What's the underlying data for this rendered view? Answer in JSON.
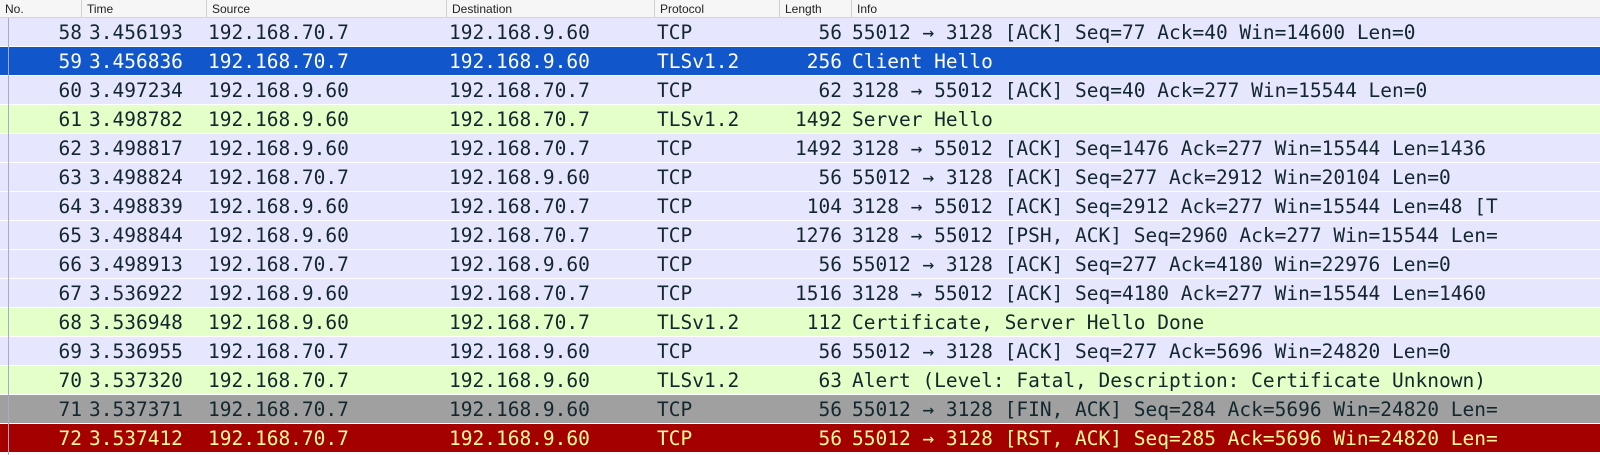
{
  "columns": [
    "No.",
    "Time",
    "Source",
    "Destination",
    "Protocol",
    "Length",
    "Info"
  ],
  "colors": {
    "tcp": "#e7e6ff",
    "tls": "#e4ffc7",
    "selected": "#1256cc",
    "fin": "#a0a0a0",
    "rst": "#a40000",
    "rst_text": "#fffc9c"
  },
  "rows": [
    {
      "no": "58",
      "time": "3.456193",
      "src": "192.168.70.7",
      "dst": "192.168.9.60",
      "proto": "TCP",
      "len": "56",
      "info": "55012 → 3128 [ACK] Seq=77 Ack=40 Win=14600 Len=0",
      "style": "tcp"
    },
    {
      "no": "59",
      "time": "3.456836",
      "src": "192.168.70.7",
      "dst": "192.168.9.60",
      "proto": "TLSv1.2",
      "len": "256",
      "info": "Client Hello",
      "style": "selected"
    },
    {
      "no": "60",
      "time": "3.497234",
      "src": "192.168.9.60",
      "dst": "192.168.70.7",
      "proto": "TCP",
      "len": "62",
      "info": "3128 → 55012 [ACK] Seq=40 Ack=277 Win=15544 Len=0",
      "style": "tcp"
    },
    {
      "no": "61",
      "time": "3.498782",
      "src": "192.168.9.60",
      "dst": "192.168.70.7",
      "proto": "TLSv1.2",
      "len": "1492",
      "info": "Server Hello",
      "style": "tls"
    },
    {
      "no": "62",
      "time": "3.498817",
      "src": "192.168.9.60",
      "dst": "192.168.70.7",
      "proto": "TCP",
      "len": "1492",
      "info": "3128 → 55012 [ACK] Seq=1476 Ack=277 Win=15544 Len=1436",
      "style": "tcp"
    },
    {
      "no": "63",
      "time": "3.498824",
      "src": "192.168.70.7",
      "dst": "192.168.9.60",
      "proto": "TCP",
      "len": "56",
      "info": "55012 → 3128 [ACK] Seq=277 Ack=2912 Win=20104 Len=0",
      "style": "tcp"
    },
    {
      "no": "64",
      "time": "3.498839",
      "src": "192.168.9.60",
      "dst": "192.168.70.7",
      "proto": "TCP",
      "len": "104",
      "info": "3128 → 55012 [ACK] Seq=2912 Ack=277 Win=15544 Len=48 [T",
      "style": "tcp"
    },
    {
      "no": "65",
      "time": "3.498844",
      "src": "192.168.9.60",
      "dst": "192.168.70.7",
      "proto": "TCP",
      "len": "1276",
      "info": "3128 → 55012 [PSH, ACK] Seq=2960 Ack=277 Win=15544 Len=",
      "style": "tcp"
    },
    {
      "no": "66",
      "time": "3.498913",
      "src": "192.168.70.7",
      "dst": "192.168.9.60",
      "proto": "TCP",
      "len": "56",
      "info": "55012 → 3128 [ACK] Seq=277 Ack=4180 Win=22976 Len=0",
      "style": "tcp"
    },
    {
      "no": "67",
      "time": "3.536922",
      "src": "192.168.9.60",
      "dst": "192.168.70.7",
      "proto": "TCP",
      "len": "1516",
      "info": "3128 → 55012 [ACK] Seq=4180 Ack=277 Win=15544 Len=1460",
      "style": "tcp"
    },
    {
      "no": "68",
      "time": "3.536948",
      "src": "192.168.9.60",
      "dst": "192.168.70.7",
      "proto": "TLSv1.2",
      "len": "112",
      "info": "Certificate, Server Hello Done",
      "style": "tls"
    },
    {
      "no": "69",
      "time": "3.536955",
      "src": "192.168.70.7",
      "dst": "192.168.9.60",
      "proto": "TCP",
      "len": "56",
      "info": "55012 → 3128 [ACK] Seq=277 Ack=5696 Win=24820 Len=0",
      "style": "tcp"
    },
    {
      "no": "70",
      "time": "3.537320",
      "src": "192.168.70.7",
      "dst": "192.168.9.60",
      "proto": "TLSv1.2",
      "len": "63",
      "info": "Alert (Level: Fatal, Description: Certificate Unknown)",
      "style": "tls"
    },
    {
      "no": "71",
      "time": "3.537371",
      "src": "192.168.70.7",
      "dst": "192.168.9.60",
      "proto": "TCP",
      "len": "56",
      "info": "55012 → 3128 [FIN, ACK] Seq=284 Ack=5696 Win=24820 Len=",
      "style": "fin"
    },
    {
      "no": "72",
      "time": "3.537412",
      "src": "192.168.70.7",
      "dst": "192.168.9.60",
      "proto": "TCP",
      "len": "56",
      "info": "55012 → 3128 [RST, ACK] Seq=285 Ack=5696 Win=24820 Len=",
      "style": "rst"
    }
  ]
}
